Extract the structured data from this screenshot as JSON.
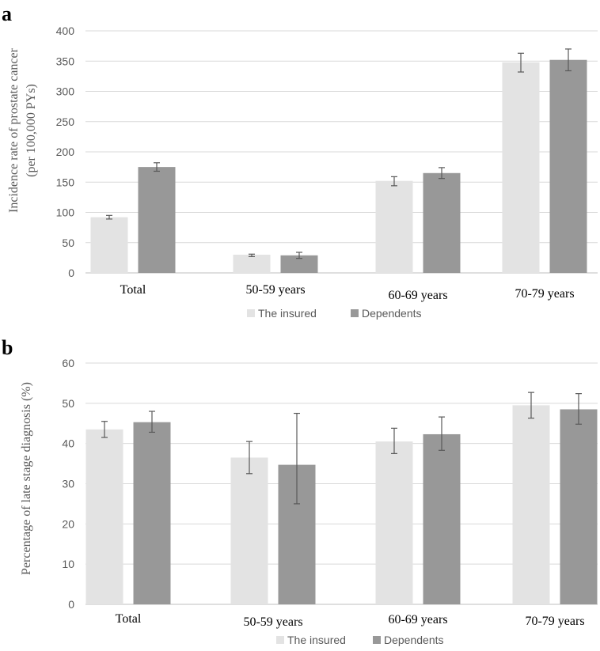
{
  "figure": {
    "panel_a_letter": "a",
    "panel_b_letter": "b"
  },
  "chart_data": [
    {
      "type": "bar",
      "panel": "a",
      "title": "",
      "ylabel_line1": "Incidence rate of prostate cancer",
      "ylabel_line2": "(per 100,000 PYs)",
      "xlabel": "",
      "ylim": [
        0,
        400
      ],
      "yticks": [
        0,
        50,
        100,
        150,
        200,
        250,
        300,
        350,
        400
      ],
      "grid": true,
      "legend_position": "bottom",
      "categories": [
        "Total",
        "50-59 years",
        "60-69 years",
        "70-79 years"
      ],
      "series": [
        {
          "name": "The insured",
          "color": "#e3e3e3",
          "values": [
            92,
            30,
            152,
            348
          ],
          "error_low": [
            89,
            27,
            144,
            332
          ],
          "error_high": [
            95,
            31,
            159,
            363
          ]
        },
        {
          "name": "Dependents",
          "color": "#989898",
          "values": [
            175,
            29,
            165,
            352
          ],
          "error_low": [
            168,
            24,
            156,
            334
          ],
          "error_high": [
            182,
            34,
            174,
            370
          ]
        }
      ]
    },
    {
      "type": "bar",
      "panel": "b",
      "title": "",
      "ylabel_line1": "Percentage of late stage diagnosis (%)",
      "ylabel_line2": "",
      "xlabel": "",
      "ylim": [
        0,
        60
      ],
      "yticks": [
        0,
        10,
        20,
        30,
        40,
        50,
        60
      ],
      "grid": true,
      "legend_position": "bottom",
      "categories": [
        "Total",
        "50-59 years",
        "60-69 years",
        "70-79 years"
      ],
      "series": [
        {
          "name": "The insured",
          "color": "#e3e3e3",
          "values": [
            43.5,
            36.5,
            40.5,
            49.5
          ],
          "error_low": [
            41.5,
            32.5,
            37.5,
            46.3
          ],
          "error_high": [
            45.5,
            40.5,
            43.8,
            52.7
          ]
        },
        {
          "name": "Dependents",
          "color": "#989898",
          "values": [
            45.3,
            34.7,
            42.3,
            48.5
          ],
          "error_low": [
            42.8,
            25.0,
            38.3,
            44.8
          ],
          "error_high": [
            48.0,
            47.5,
            46.6,
            52.4
          ]
        }
      ]
    }
  ]
}
